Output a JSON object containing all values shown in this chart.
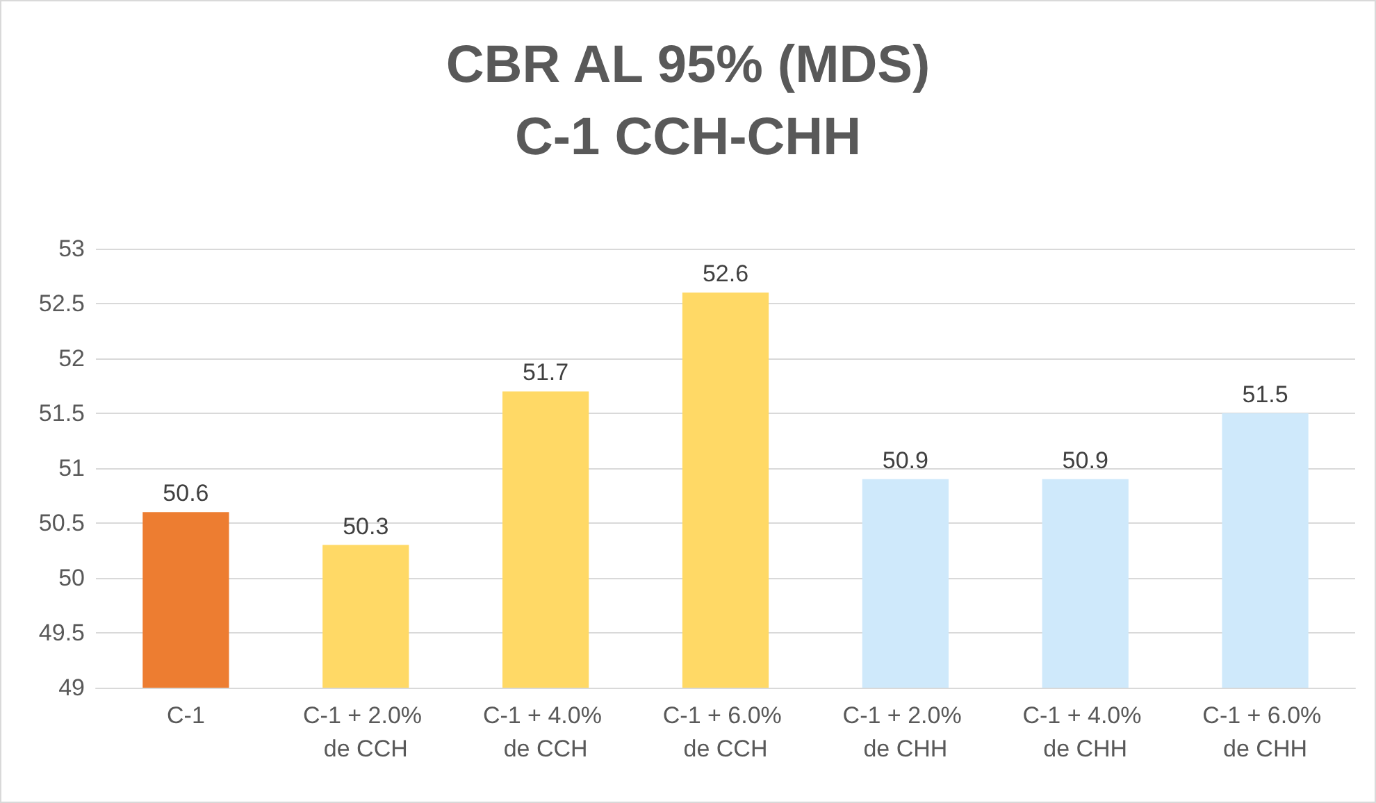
{
  "chart_data": {
    "type": "bar",
    "title": "CBR AL 95% (MDS)",
    "subtitle": "C-1 CCH-CHH",
    "categories": [
      "C-1",
      "C-1 + 2.0% de CCH",
      "C-1 + 4.0% de CCH",
      "C-1 + 6.0% de CCH",
      "C-1 + 2.0% de CHH",
      "C-1 + 4.0% de CHH",
      "C-1 + 6.0% de CHH"
    ],
    "values": [
      50.6,
      50.3,
      51.7,
      52.6,
      50.9,
      50.9,
      51.5
    ],
    "colors": [
      "#ed7d31",
      "#ffd966",
      "#ffd966",
      "#ffd966",
      "#cfe9fb",
      "#cfe9fb",
      "#cfe9fb"
    ],
    "ylim": [
      49,
      53
    ],
    "yticks": [
      49,
      49.5,
      50,
      50.5,
      51,
      51.5,
      52,
      52.5,
      53
    ],
    "grid": "y",
    "data_labels": true
  }
}
